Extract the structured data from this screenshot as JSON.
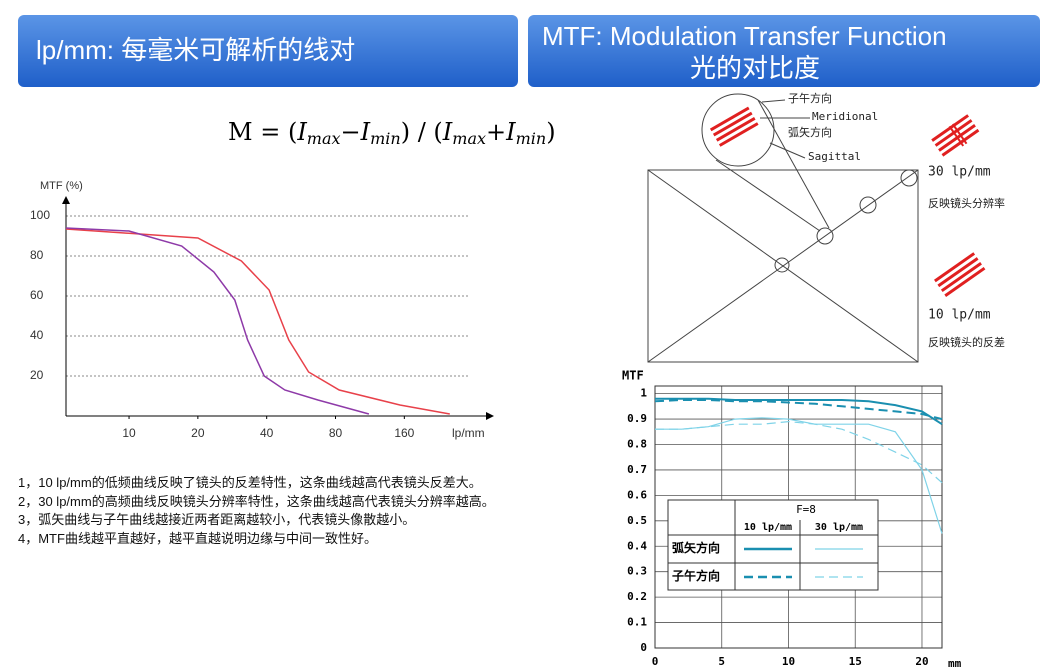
{
  "header": {
    "left_title": "lp/mm: 每毫米可解析的线对",
    "right_title": "MTF: Modulation Transfer Function",
    "right_subtitle": "光的对比度"
  },
  "formula": [
    "M = (",
    "I",
    "max",
    "−",
    "I",
    "min",
    ") / (",
    "I",
    "max",
    "+",
    "I",
    "min",
    ")"
  ],
  "notes": [
    "1，10 lp/mm的低频曲线反映了镜头的反差特性，这条曲线越高代表镜头反差大。",
    "2，30 lp/mm的高频曲线反映镜头分辨率特性，这条曲线越高代表镜头分辨率越高。",
    "3，弧矢曲线与子午曲线越接近两者距离越较小，代表镜头像散越小。",
    "4，MTF曲线越平直越好，越平直越说明边缘与中间一致性好。"
  ],
  "diagram": {
    "labels": [
      "子午方向",
      "Meridional",
      "弧矢方向",
      "Sagittal",
      "30 lp/mm",
      "反映镜头分辨率",
      "10 lp/mm",
      "反映镜头的反差"
    ]
  },
  "chart_data": [
    {
      "type": "line",
      "ylabel": "MTF (%)",
      "xlabel": "lp/mm",
      "xscale": "log",
      "xlim": [
        5.3,
        310
      ],
      "xticks": [
        10,
        20,
        40,
        80,
        160
      ],
      "ylim": [
        0,
        108
      ],
      "yticks": [
        20,
        40,
        60,
        80,
        100
      ],
      "grid": true,
      "series": [
        {
          "color": "#e8414a",
          "x": [
            5.3,
            20,
            31,
            41,
            50,
            61,
            83,
            153,
            253
          ],
          "values": [
            93.5,
            89,
            77.5,
            63,
            38,
            22,
            13,
            5.5,
            1
          ]
        },
        {
          "color": "#8e3aa8",
          "x": [
            5.3,
            10,
            17,
            23.5,
            29,
            33,
            39,
            48,
            67,
            112
          ],
          "values": [
            94,
            92.5,
            85,
            72,
            58,
            38,
            20,
            13,
            8,
            1
          ]
        }
      ]
    },
    {
      "type": "line",
      "ylabel": "MTF",
      "xlabel": "mm",
      "xlim": [
        0,
        21.5
      ],
      "xticks": [
        0,
        5,
        10,
        15,
        20
      ],
      "ylim": [
        0,
        1.03
      ],
      "yticks": [
        0,
        0.1,
        0.2,
        0.3,
        0.4,
        0.5,
        0.6,
        0.7,
        0.8,
        0.9,
        1
      ],
      "grid": true,
      "x": [
        0,
        2,
        4,
        6,
        8,
        10,
        12,
        14,
        16,
        18,
        20,
        21.5
      ],
      "legend": {
        "title": "F=8",
        "columns": [
          "10 lp/mm",
          "30 lp/mm"
        ],
        "rows": [
          "弧矢方向",
          "子午方向"
        ]
      },
      "series": [
        {
          "color": "#1a8fb0",
          "dash": false,
          "values": [
            0.98,
            0.98,
            0.98,
            0.975,
            0.975,
            0.975,
            0.975,
            0.975,
            0.97,
            0.955,
            0.93,
            0.88
          ]
        },
        {
          "color": "#7fd3e8",
          "dash": false,
          "values": [
            0.86,
            0.86,
            0.87,
            0.9,
            0.905,
            0.9,
            0.88,
            0.88,
            0.88,
            0.85,
            0.7,
            0.45
          ]
        },
        {
          "color": "#1a8fb0",
          "dash": true,
          "values": [
            0.97,
            0.975,
            0.975,
            0.97,
            0.97,
            0.965,
            0.96,
            0.95,
            0.94,
            0.93,
            0.92,
            0.9
          ]
        },
        {
          "color": "#7fd3e8",
          "dash": true,
          "values": [
            0.86,
            0.86,
            0.87,
            0.88,
            0.88,
            0.89,
            0.88,
            0.86,
            0.82,
            0.77,
            0.72,
            0.65
          ]
        }
      ]
    }
  ]
}
